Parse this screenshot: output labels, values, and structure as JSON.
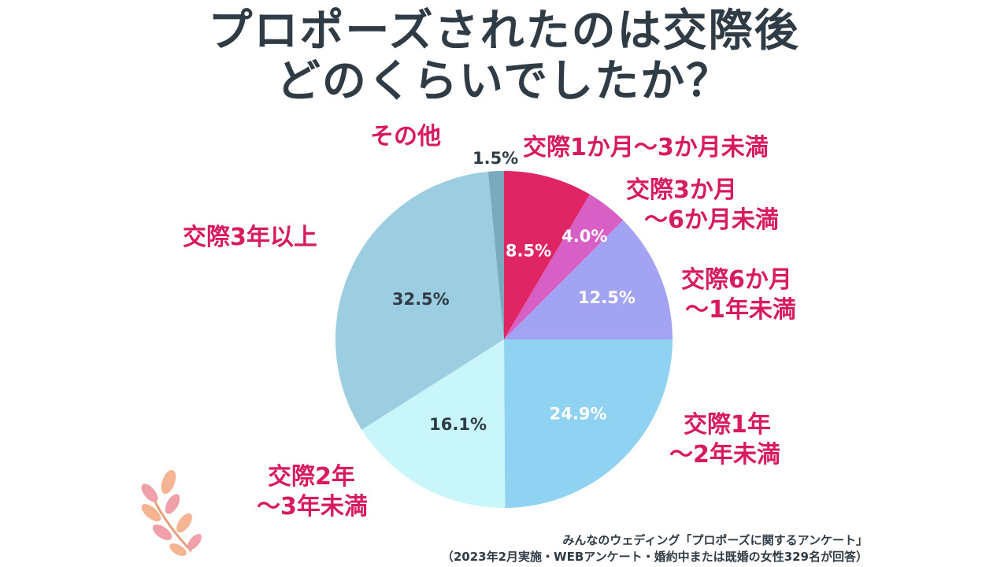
{
  "title": {
    "line1": "プロポーズされたのは交際後",
    "line2": "どのくらいでしたか？"
  },
  "chart_data": {
    "type": "pie",
    "title": "プロポーズされたのは交際後どのくらいでしたか？",
    "start": "top",
    "direction": "clockwise",
    "slices": [
      {
        "name": "交際1か月～3か月未満",
        "lines": [
          "交際1か月～3か月未満"
        ],
        "value": 8.5,
        "value_label": "8.5%",
        "color": "#e02565",
        "text_color": "#ffffff"
      },
      {
        "name": "交際3か月～6か月未満",
        "lines": [
          "交際3か月",
          "～6か月未満"
        ],
        "value": 4.0,
        "value_label": "4.0%",
        "color": "#d85fc6",
        "text_color": "#ffffff"
      },
      {
        "name": "交際6か月～1年未満",
        "lines": [
          "交際6か月",
          "～1年未満"
        ],
        "value": 12.5,
        "value_label": "12.5%",
        "color": "#a3a3f3",
        "text_color": "#ffffff"
      },
      {
        "name": "交際1年～2年未満",
        "lines": [
          "交際1年",
          "～2年未満"
        ],
        "value": 24.9,
        "value_label": "24.9%",
        "color": "#8fd2f2",
        "text_color": "#ffffff"
      },
      {
        "name": "交際2年～3年未満",
        "lines": [
          "交際2年",
          "～3年未満"
        ],
        "value": 16.1,
        "value_label": "16.1%",
        "color": "#c9f6fb",
        "text_color": "#2f3b45"
      },
      {
        "name": "交際3年以上",
        "lines": [
          "交際3年以上"
        ],
        "value": 32.5,
        "value_label": "32.5%",
        "color": "#9dcde0",
        "text_color": "#2f3b45"
      },
      {
        "name": "その他",
        "lines": [
          "その他"
        ],
        "value": 1.5,
        "value_label": "1.5%",
        "color": "#7aaabe",
        "text_color": "#2f3b45"
      }
    ]
  },
  "source": {
    "line1": "みんなのウェディング「プロポーズに関するアンケート」",
    "line2": "（2023年2月実施・WEBアンケート・婚約中または既婚の女性329名が回答）"
  },
  "colors": {
    "title": "#2f3b45",
    "label": "#d81b5f",
    "leaf_pink": "#f0a0a8",
    "leaf_peach": "#f5b592",
    "stem": "#e6a07a"
  }
}
